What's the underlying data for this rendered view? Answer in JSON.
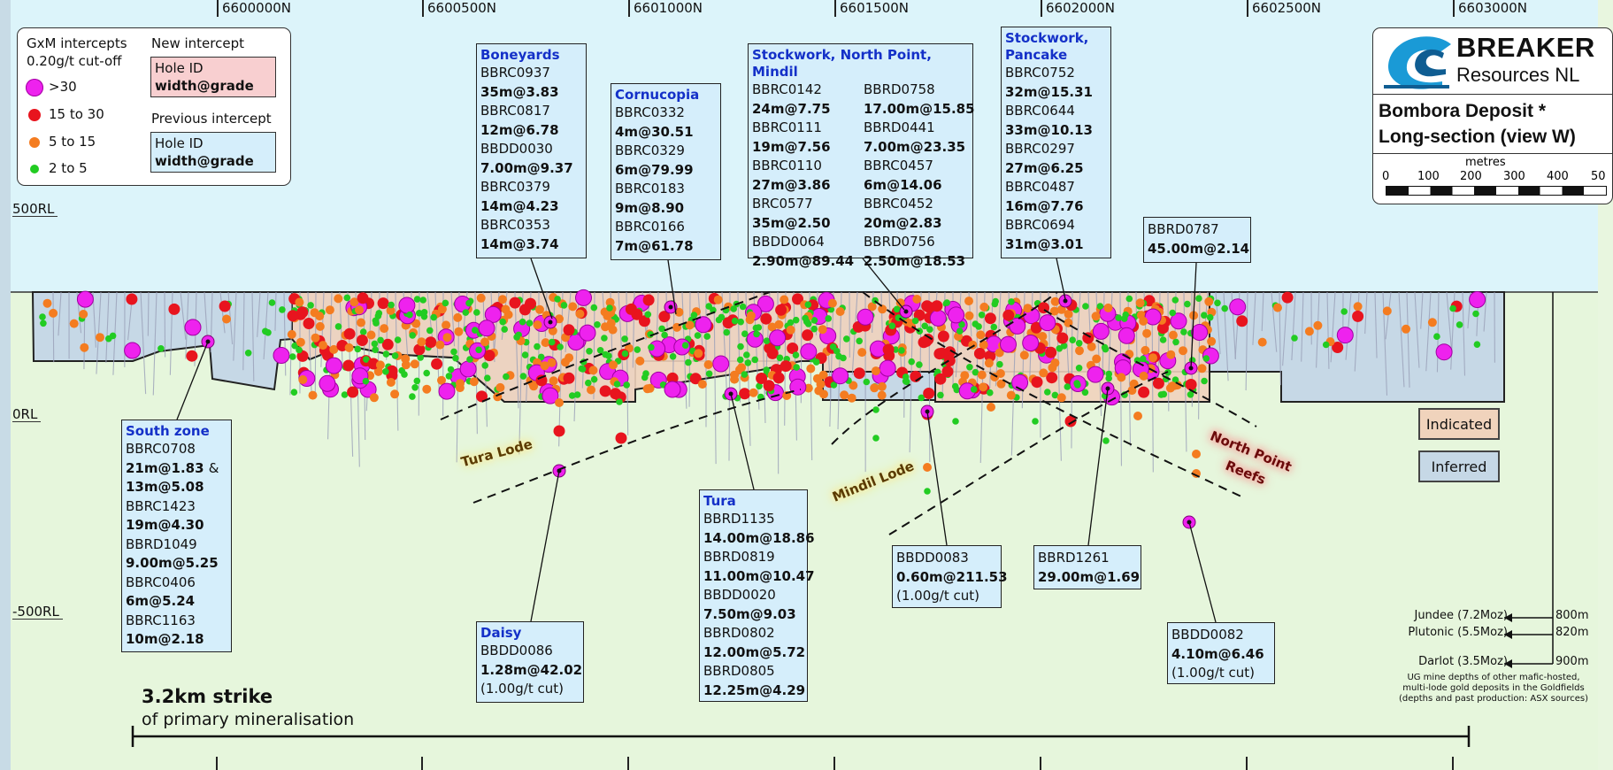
{
  "easting_labels": [
    "6600000N",
    "6600500N",
    "6601000N",
    "6601500N",
    "6602000N",
    "6602500N",
    "6603000N"
  ],
  "rl_labels": [
    "500RL",
    "0RL",
    "-500RL"
  ],
  "legend": {
    "title_line1": "GxM intercepts",
    "title_line2": "0.20g/t cut-off",
    "classes": [
      {
        "label": ">30",
        "color": "#ee22ee"
      },
      {
        "label": "15 to 30",
        "color": "#e8141e"
      },
      {
        "label": "5 to 15",
        "color": "#f47c20"
      },
      {
        "label": "2 to 5",
        "color": "#22cc22"
      }
    ],
    "new_title": "New intercept",
    "new_line1": "Hole ID",
    "new_line2": "width@grade",
    "new_color": "#f8cfd0",
    "prev_title": "Previous intercept",
    "prev_line1": "Hole ID",
    "prev_line2": "width@grade",
    "prev_color": "#d5eefb"
  },
  "company": {
    "name_line1": "BREAKER",
    "name_line2": "Resources NL"
  },
  "section_title": {
    "line1": "Bombora Deposit *",
    "line2": "Long-section (view W)"
  },
  "scale_bar": {
    "unit": "metres",
    "ticks": [
      "0",
      "100",
      "200",
      "300",
      "400",
      "50"
    ]
  },
  "resource_legend": {
    "indicated": "Indicated",
    "inferred": "Inferred",
    "indicated_color": "#f0d3bc",
    "inferred_color": "#c6d8e6"
  },
  "lodes": {
    "tura": "Tura Lode",
    "mindil": "Mindil Lode",
    "north_point_1": "North Point",
    "north_point_2": "Reefs"
  },
  "zones": {
    "boneyards": {
      "title": "Boneyards",
      "rows": [
        {
          "text": "BBRC0937",
          "bold": false
        },
        {
          "text": "35m@3.83",
          "bold": true
        },
        {
          "text": "BBRC0817",
          "bold": false
        },
        {
          "text": "12m@6.78",
          "bold": true
        },
        {
          "text": "BBDD0030",
          "bold": false
        },
        {
          "text": "7.00m@9.37",
          "bold": true
        },
        {
          "text": "BBRC0379",
          "bold": false
        },
        {
          "text": "14m@4.23",
          "bold": true
        },
        {
          "text": "BBRC0353",
          "bold": false
        },
        {
          "text": "14m@3.74",
          "bold": true
        }
      ]
    },
    "cornucopia": {
      "title": "Cornucopia",
      "rows": [
        {
          "text": "BBRC0332",
          "bold": false
        },
        {
          "text": "4m@30.51",
          "bold": true
        },
        {
          "text": "BBRC0329",
          "bold": false
        },
        {
          "text": "6m@79.99",
          "bold": true
        },
        {
          "text": "BBRC0183",
          "bold": false
        },
        {
          "text": "9m@8.90",
          "bold": true
        },
        {
          "text": "BBRC0166",
          "bold": false
        },
        {
          "text": "7m@61.78",
          "bold": true
        }
      ]
    },
    "stockwork_np": {
      "title": "Stockwork, North Point, Mindil",
      "rows": [
        {
          "text": "BBRC0142",
          "bold": false
        },
        {
          "text": "BBRD0758",
          "bold": false
        },
        {
          "text": "24m@7.75",
          "bold": true
        },
        {
          "text": "17.00m@15.85",
          "bold": true
        },
        {
          "text": "BBRC0111",
          "bold": false
        },
        {
          "text": "BBRD0441",
          "bold": false
        },
        {
          "text": "19m@7.56",
          "bold": true
        },
        {
          "text": "7.00m@23.35",
          "bold": true
        },
        {
          "text": "BBRC0110",
          "bold": false
        },
        {
          "text": "BBRC0457",
          "bold": false
        },
        {
          "text": "27m@3.86",
          "bold": true
        },
        {
          "text": "6m@14.06",
          "bold": true
        },
        {
          "text": "BRC0577",
          "bold": false
        },
        {
          "text": "BBRC0452",
          "bold": false
        },
        {
          "text": "35m@2.50",
          "bold": true
        },
        {
          "text": "20m@2.83",
          "bold": true
        },
        {
          "text": "BBDD0064",
          "bold": false
        },
        {
          "text": "BBRD0756",
          "bold": false
        },
        {
          "text": "2.90m@89.44",
          "bold": true
        },
        {
          "text": "2.50m@18.53",
          "bold": true
        }
      ]
    },
    "stockwork_pancake": {
      "title_line1": "Stockwork,",
      "title_line2": "Pancake",
      "rows": [
        {
          "text": "BBRC0752",
          "bold": false
        },
        {
          "text": "32m@15.31",
          "bold": true
        },
        {
          "text": "BBRC0644",
          "bold": false
        },
        {
          "text": "33m@10.13",
          "bold": true
        },
        {
          "text": "BBRC0297",
          "bold": false
        },
        {
          "text": "27m@6.25",
          "bold": true
        },
        {
          "text": "BBRC0487",
          "bold": false
        },
        {
          "text": "16m@7.76",
          "bold": true
        },
        {
          "text": "BBRC0694",
          "bold": false
        },
        {
          "text": "31m@3.01",
          "bold": true
        }
      ]
    },
    "bbrd0787": {
      "rows": [
        {
          "text": "BBRD0787",
          "bold": false
        },
        {
          "text": "45.00m@2.14",
          "bold": true
        }
      ]
    },
    "south": {
      "title": "South zone",
      "rows": [
        {
          "text": "BBRC0708",
          "bold": false
        },
        {
          "text": "21m@1.83 ",
          "bold": true,
          "suffix": "&"
        },
        {
          "text": "13m@5.08",
          "bold": true
        },
        {
          "text": "BBRC1423",
          "bold": false
        },
        {
          "text": "19m@4.30",
          "bold": true
        },
        {
          "text": "BBRD1049",
          "bold": false
        },
        {
          "text": "9.00m@5.25",
          "bold": true
        },
        {
          "text": "BBRC0406",
          "bold": false
        },
        {
          "text": "6m@5.24",
          "bold": true
        },
        {
          "text": "BBRC1163",
          "bold": false
        },
        {
          "text": "10m@2.18",
          "bold": true
        }
      ]
    },
    "daisy": {
      "title": "Daisy",
      "rows": [
        {
          "text": "BBDD0086",
          "bold": false
        },
        {
          "text": "1.28m@42.02",
          "bold": true
        },
        {
          "text": "(1.00g/t cut)",
          "bold": false
        }
      ]
    },
    "tura": {
      "title": "Tura",
      "rows": [
        {
          "text": "BBRD1135",
          "bold": false
        },
        {
          "text": "14.00m@18.86",
          "bold": true
        },
        {
          "text": "BBRD0819",
          "bold": false
        },
        {
          "text": "11.00m@10.47",
          "bold": true
        },
        {
          "text": "BBDD0020",
          "bold": false
        },
        {
          "text": "7.50m@9.03",
          "bold": true
        },
        {
          "text": "BBRD0802",
          "bold": false
        },
        {
          "text": "12.00m@5.72",
          "bold": true
        },
        {
          "text": "BBRD0805",
          "bold": false
        },
        {
          "text": "12.25m@4.29",
          "bold": true
        }
      ]
    },
    "bbdd0083": {
      "rows": [
        {
          "text": "BBDD0083",
          "bold": false
        },
        {
          "text": "0.60m@211.53",
          "bold": true
        },
        {
          "text": "(1.00g/t cut)",
          "bold": false
        }
      ]
    },
    "bbrd1261": {
      "rows": [
        {
          "text": "BBRD1261",
          "bold": false
        },
        {
          "text": "29.00m@1.69",
          "bold": true
        }
      ]
    },
    "bbdd0082": {
      "rows": [
        {
          "text": "BBDD0082",
          "bold": false
        },
        {
          "text": "4.10m@6.46",
          "bold": true
        },
        {
          "text": "(1.00g/t cut)",
          "bold": false
        }
      ]
    }
  },
  "mine_depths": [
    {
      "name": "Jundee (7.2Moz)",
      "depth": "800m"
    },
    {
      "name": "Plutonic (5.5Moz)",
      "depth": "820m"
    },
    {
      "name": "Darlot (3.5Moz)",
      "depth": "900m"
    }
  ],
  "mine_note": [
    "UG mine depths of other mafic-hosted,",
    "multi-lode gold deposits in the Goldfields",
    "(depths and past production: ASX sources)"
  ],
  "strike": {
    "line1": "3.2km strike",
    "line2": "of primary mineralisation"
  }
}
